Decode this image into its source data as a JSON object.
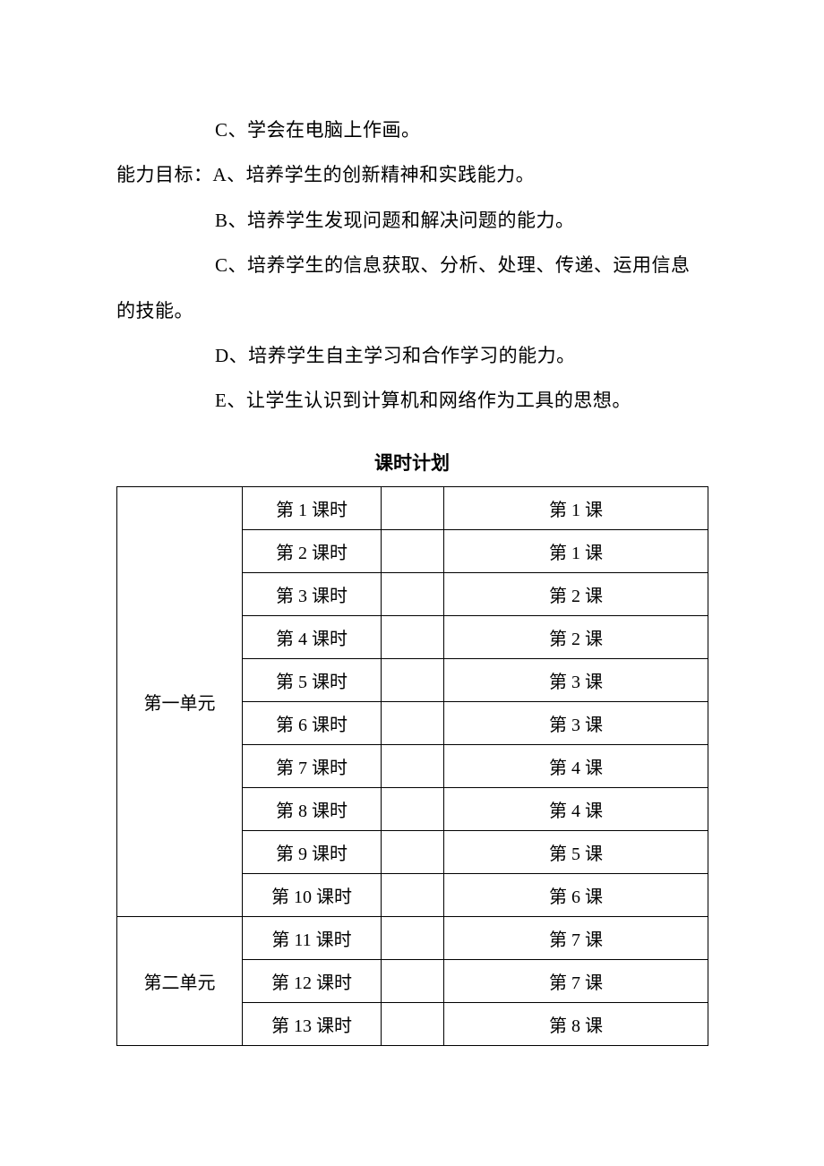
{
  "lines": {
    "l1": "C、学会在电脑上作画。",
    "l2": "能力目标：A、培养学生的创新精神和实践能力。",
    "l3": "B、培养学生发现问题和解决问题的能力。",
    "l4": "C、培养学生的信息获取、分析、处理、传递、运用信息",
    "l5": "的技能。",
    "l6": "D、培养学生自主学习和合作学习的能力。",
    "l7": "E、让学生认识到计算机和网络作为工具的思想。"
  },
  "tableTitle": "课时计划",
  "units": [
    {
      "label": "第一单元",
      "rowspan": 10
    },
    {
      "label": "第二单元",
      "rowspan": 3
    }
  ],
  "rows": [
    {
      "unitIndex": 0,
      "period": "第 1 课时",
      "lesson": "第 1 课"
    },
    {
      "unitIndex": 0,
      "period": "第 2 课时",
      "lesson": "第 1 课"
    },
    {
      "unitIndex": 0,
      "period": "第 3 课时",
      "lesson": "第 2 课"
    },
    {
      "unitIndex": 0,
      "period": "第 4 课时",
      "lesson": "第 2 课"
    },
    {
      "unitIndex": 0,
      "period": "第 5 课时",
      "lesson": "第 3 课"
    },
    {
      "unitIndex": 0,
      "period": "第 6 课时",
      "lesson": "第 3 课"
    },
    {
      "unitIndex": 0,
      "period": "第 7 课时",
      "lesson": "第 4 课"
    },
    {
      "unitIndex": 0,
      "period": "第 8 课时",
      "lesson": "第 4 课"
    },
    {
      "unitIndex": 0,
      "period": "第 9 课时",
      "lesson": "第 5 课"
    },
    {
      "unitIndex": 0,
      "period": "第 10 课时",
      "lesson": "第 6 课"
    },
    {
      "unitIndex": 1,
      "period": "第 11 课时",
      "lesson": "第 7 课"
    },
    {
      "unitIndex": 1,
      "period": "第 12 课时",
      "lesson": "第 7 课"
    },
    {
      "unitIndex": 1,
      "period": "第 13 课时",
      "lesson": "第 8 课"
    }
  ]
}
